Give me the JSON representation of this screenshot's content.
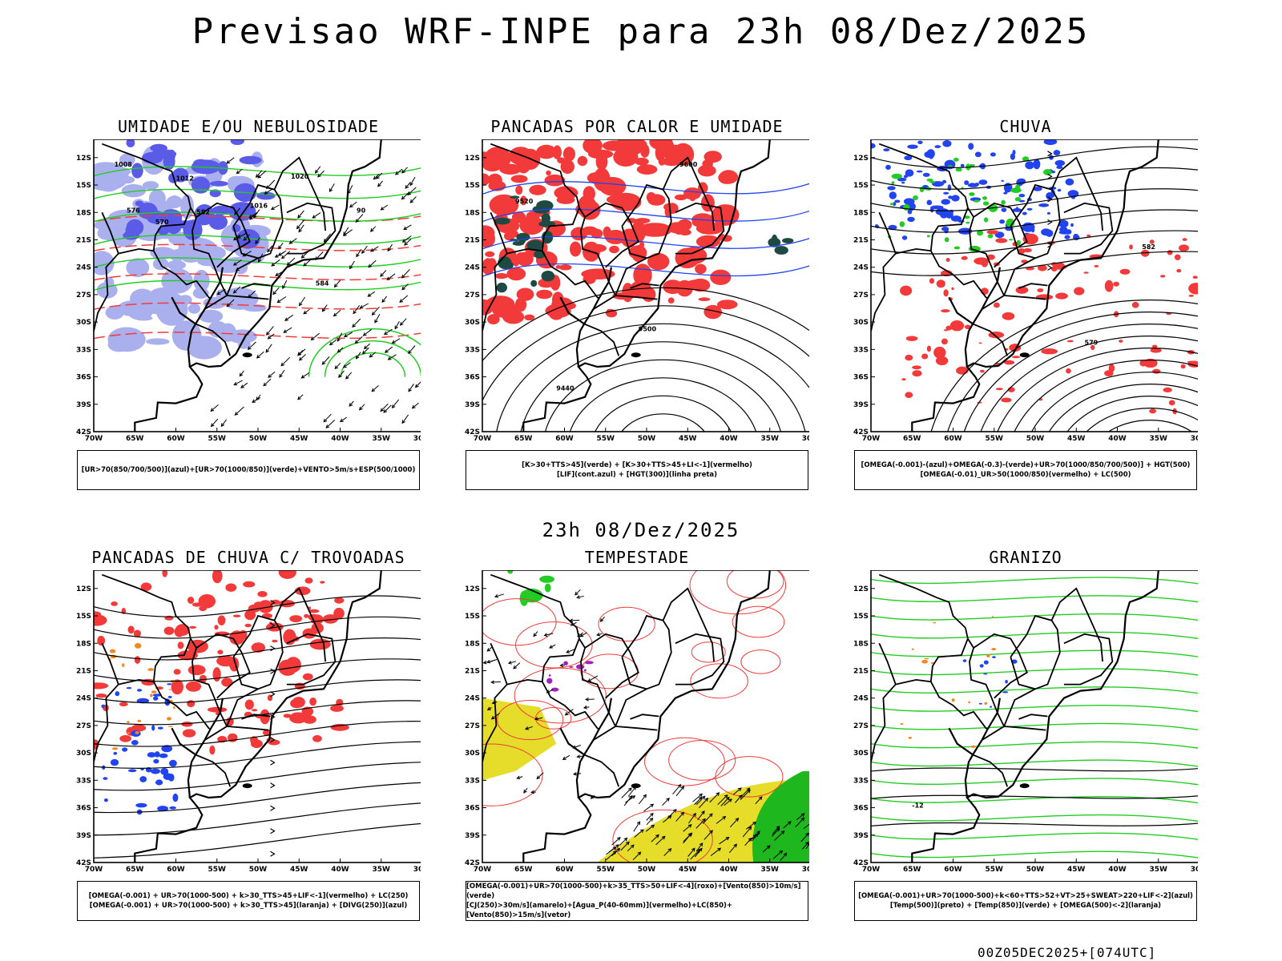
{
  "header": {
    "title": "Previsao WRF-INPE  para 23h 08/Dez/2025"
  },
  "mid_title": "23h 08/Dez/2025",
  "footer": "00Z05DEC2025+[074UTC]",
  "axes": {
    "lat_labels": [
      "12S",
      "15S",
      "18S",
      "21S",
      "24S",
      "27S",
      "30S",
      "33S",
      "36S",
      "39S",
      "42S"
    ],
    "lon_labels": [
      "70W",
      "65W",
      "60W",
      "55W",
      "50W",
      "45W",
      "40W",
      "35W",
      "30W"
    ]
  },
  "panels": [
    {
      "title": "UMIDADE E/OU NEBULOSIDADE",
      "legend": [
        "[UR>70(850/700/500)](azul)+[UR>70(1000/850)](verde)+VENTO>5m/s+ESP(500/1000)"
      ]
    },
    {
      "title": "PANCADAS POR CALOR E UMIDADE",
      "legend": [
        "[K>30+TTS>45](verde)  +  [K>30+TTS>45+LI<-1](vermelho)",
        "[LIF](cont.azul)  +  [HGT(300)](linha preta)"
      ]
    },
    {
      "title": "CHUVA",
      "legend": [
        "[OMEGA(-0.001)-(azul)+OMEGA(-0.3)-(verde)+UR>70(1000/850/700/500)]  +  HGT(500)",
        "[OMEGA(-0.01)_UR>50(1000/850)(vermelho)  +  LC(500)"
      ]
    },
    {
      "title": "PANCADAS DE CHUVA C/ TROVOADAS",
      "legend": [
        "[OMEGA(-0.001)  +  UR>70(1000-500)  +  k>30_TTS>45+LIF<-1](vermelho)  +  LC(250)",
        "[OMEGA(-0.001)  +  UR>70(1000-500)  +  k>30_TTS>45](laranja)  +  [DIVG(250)](azul)"
      ]
    },
    {
      "title": "TEMPESTADE",
      "legend": [
        "[OMEGA(-0.001)+UR>70(1000-500)+k>35_TTS>50+LIF<-4](roxo)+[Vento(850)>10m/s](verde)",
        "[CJ(250)>30m/s](amarelo)+[Agua_P(40-60mm)](vermelho)+LC(850)+[Vento(850)>15m/s](vetor)"
      ]
    },
    {
      "title": "GRANIZO",
      "legend": [
        "[OMEGA(-0.001)+UR>70(1000-500)+k<60+TTS>52+VT>25+SWEAT>220+LIF<-2](azul)",
        "[Temp(500)](preto)  +  [Temp(850)](verde)  +  [OMEGA(500)<-2](laranja)"
      ]
    }
  ],
  "contour_labels": {
    "p0": [
      "1008",
      "1012",
      "1016",
      "1020",
      "570",
      "576",
      "582",
      "584",
      "90"
    ],
    "p1": [
      "9600",
      "9520",
      "9440",
      "9500"
    ],
    "p2": [
      "582",
      "579"
    ],
    "p5": [
      "-12"
    ]
  },
  "colors": {
    "red": "#f23a3a",
    "blue": "#2244ee",
    "green": "#22cc22",
    "lightblue": "#aab0ee",
    "darkgreen": "#1f4a44",
    "yellow": "#e6dc2a",
    "orange": "#f08a20",
    "purple": "#a020c0"
  }
}
